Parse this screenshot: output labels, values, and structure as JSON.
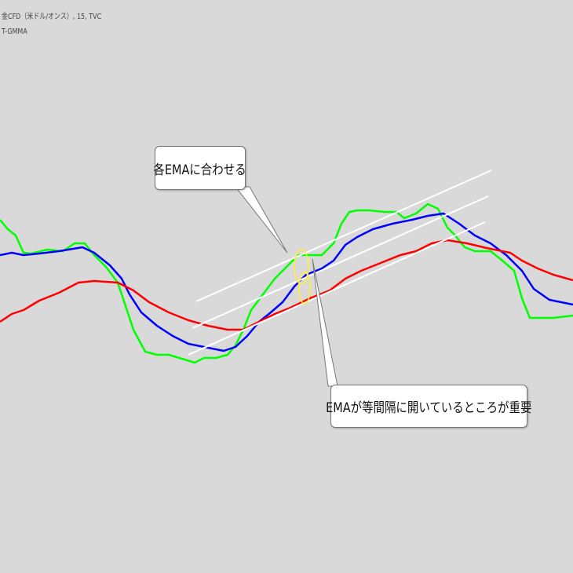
{
  "header": {
    "symbol": "金CFD（米ドル/オンス）, 15, TVC",
    "indicator": "T-GMMA"
  },
  "annotations": {
    "callout_top": "各EMAに合わせる",
    "callout_bottom": "EMAが等間隔に開いているところが重要"
  },
  "chart_data": {
    "type": "line",
    "title": "",
    "xlabel": "",
    "ylabel": "",
    "grid": false,
    "note_units": "relative price level (no axis printed)",
    "series": [
      {
        "color": "#00ff00",
        "points": [
          [
            0,
            280
          ],
          [
            10,
            292
          ],
          [
            20,
            300
          ],
          [
            30,
            322
          ],
          [
            40,
            323
          ],
          [
            60,
            318
          ],
          [
            80,
            320
          ],
          [
            95,
            310
          ],
          [
            108,
            310
          ],
          [
            120,
            325
          ],
          [
            135,
            340
          ],
          [
            150,
            360
          ],
          [
            160,
            390
          ],
          [
            170,
            420
          ],
          [
            185,
            448
          ],
          [
            200,
            452
          ],
          [
            215,
            452
          ],
          [
            235,
            458
          ],
          [
            248,
            462
          ],
          [
            260,
            456
          ],
          [
            275,
            456
          ],
          [
            290,
            452
          ],
          [
            300,
            440
          ],
          [
            310,
            420
          ],
          [
            320,
            395
          ],
          [
            335,
            375
          ],
          [
            350,
            355
          ],
          [
            365,
            340
          ],
          [
            380,
            325
          ],
          [
            395,
            325
          ],
          [
            410,
            325
          ],
          [
            425,
            310
          ],
          [
            435,
            285
          ],
          [
            445,
            270
          ],
          [
            455,
            268
          ],
          [
            470,
            268
          ],
          [
            490,
            270
          ],
          [
            505,
            270
          ],
          [
            515,
            278
          ],
          [
            530,
            272
          ],
          [
            545,
            260
          ],
          [
            558,
            266
          ],
          [
            570,
            290
          ],
          [
            580,
            300
          ],
          [
            592,
            315
          ],
          [
            605,
            320
          ],
          [
            625,
            320
          ],
          [
            640,
            332
          ],
          [
            655,
            345
          ],
          [
            665,
            380
          ],
          [
            675,
            405
          ],
          [
            690,
            405
          ],
          [
            705,
            405
          ],
          [
            730,
            402
          ]
        ]
      },
      {
        "color": "#0000ff",
        "points": [
          [
            0,
            325
          ],
          [
            15,
            322
          ],
          [
            30,
            325
          ],
          [
            50,
            323
          ],
          [
            75,
            320
          ],
          [
            105,
            315
          ],
          [
            120,
            322
          ],
          [
            140,
            338
          ],
          [
            155,
            355
          ],
          [
            165,
            375
          ],
          [
            180,
            398
          ],
          [
            200,
            415
          ],
          [
            220,
            428
          ],
          [
            240,
            438
          ],
          [
            260,
            442
          ],
          [
            285,
            447
          ],
          [
            300,
            442
          ],
          [
            315,
            428
          ],
          [
            330,
            410
          ],
          [
            345,
            398
          ],
          [
            360,
            385
          ],
          [
            375,
            365
          ],
          [
            390,
            350
          ],
          [
            410,
            342
          ],
          [
            425,
            332
          ],
          [
            440,
            312
          ],
          [
            455,
            302
          ],
          [
            475,
            292
          ],
          [
            500,
            285
          ],
          [
            525,
            280
          ],
          [
            545,
            275
          ],
          [
            565,
            272
          ],
          [
            585,
            285
          ],
          [
            605,
            300
          ],
          [
            625,
            310
          ],
          [
            645,
            325
          ],
          [
            665,
            345
          ],
          [
            680,
            368
          ],
          [
            700,
            382
          ],
          [
            730,
            388
          ]
        ]
      },
      {
        "color": "#ff0000",
        "points": [
          [
            0,
            410
          ],
          [
            15,
            400
          ],
          [
            30,
            395
          ],
          [
            50,
            383
          ],
          [
            75,
            373
          ],
          [
            100,
            360
          ],
          [
            120,
            358
          ],
          [
            150,
            360
          ],
          [
            170,
            370
          ],
          [
            190,
            385
          ],
          [
            215,
            398
          ],
          [
            240,
            408
          ],
          [
            265,
            415
          ],
          [
            290,
            420
          ],
          [
            310,
            420
          ],
          [
            330,
            410
          ],
          [
            350,
            400
          ],
          [
            370,
            392
          ],
          [
            395,
            380
          ],
          [
            420,
            370
          ],
          [
            440,
            355
          ],
          [
            460,
            345
          ],
          [
            485,
            335
          ],
          [
            510,
            325
          ],
          [
            530,
            320
          ],
          [
            550,
            310
          ],
          [
            570,
            306
          ],
          [
            595,
            310
          ],
          [
            620,
            316
          ],
          [
            650,
            322
          ],
          [
            665,
            332
          ],
          [
            685,
            342
          ],
          [
            705,
            350
          ],
          [
            730,
            357
          ]
        ]
      }
    ],
    "trendlines_color": "#ffffff",
    "highlight_color": "#ffee33"
  }
}
